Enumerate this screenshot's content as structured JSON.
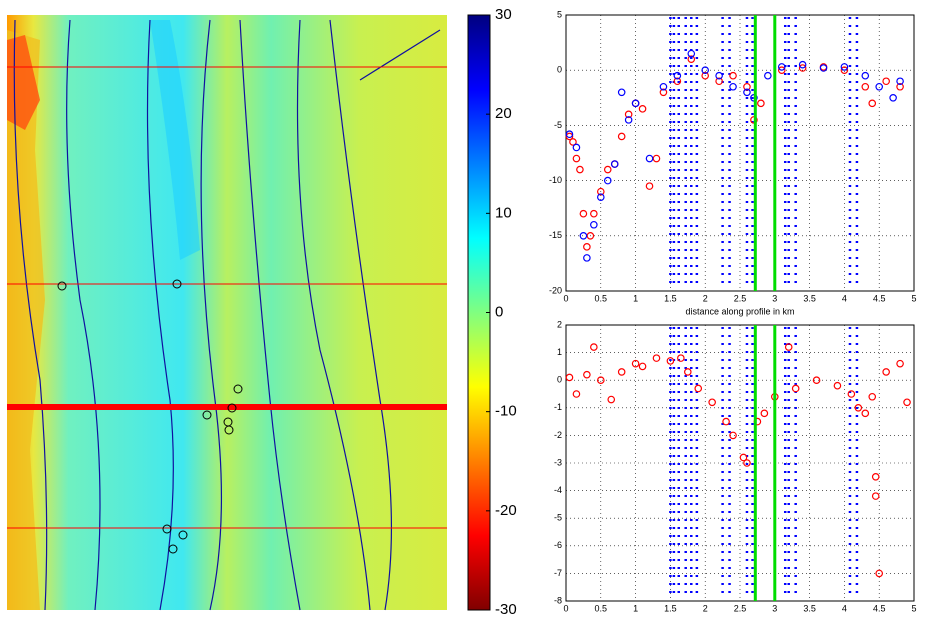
{
  "chart_data": [
    {
      "type": "heatmap",
      "clim": [
        -30,
        30
      ],
      "colorbar_ticks": [
        30,
        20,
        10,
        0,
        -10,
        -20,
        -30
      ]
    },
    {
      "type": "scatter",
      "xlim": [
        0,
        5
      ],
      "ylim": [
        -20,
        5
      ],
      "xticks": [
        0,
        0.5,
        1,
        1.5,
        2,
        2.5,
        3,
        3.5,
        4,
        4.5,
        5
      ],
      "yticks": [
        -20,
        -15,
        -10,
        -5,
        0,
        5
      ],
      "grid": true,
      "xlabel": "distance along profile in km",
      "vlines": {
        "color": "#00dd00",
        "x": [
          2.72,
          3.0
        ]
      },
      "marker_columns": {
        "color": "#0000ff",
        "x": [
          1.5,
          1.55,
          1.62,
          1.72,
          1.8,
          1.88,
          2.25,
          2.35,
          2.6,
          2.68,
          3.15,
          3.2,
          3.3,
          4.08,
          4.18
        ]
      },
      "series": [
        {
          "color": "#ff0000",
          "x": [
            0.05,
            0.1,
            0.15,
            0.2,
            0.25,
            0.3,
            0.35,
            0.4,
            0.5,
            0.6,
            0.7,
            0.8,
            0.9,
            1.0,
            1.1,
            1.2,
            1.3,
            1.4,
            1.6,
            1.8,
            2.0,
            2.2,
            2.4,
            2.6,
            2.7,
            2.8,
            3.1,
            3.4,
            3.7,
            4.0,
            4.3,
            4.4,
            4.6,
            4.8
          ],
          "values": [
            -6,
            -6.5,
            -8,
            -9,
            -13,
            -16,
            -15,
            -13,
            -11,
            -9,
            -8.5,
            -6,
            -4,
            -3,
            -3.5,
            -10.5,
            -8,
            -2,
            -1,
            1,
            -0.5,
            -1,
            -0.5,
            -1.5,
            -4.5,
            -3,
            0,
            0.2,
            0.3,
            0,
            -1.5,
            -3,
            -1,
            -1.5
          ]
        },
        {
          "color": "#0000ff",
          "x": [
            0.05,
            0.15,
            0.25,
            0.3,
            0.4,
            0.5,
            0.6,
            0.7,
            0.8,
            0.9,
            1.0,
            1.2,
            1.4,
            1.6,
            1.8,
            2.0,
            2.2,
            2.4,
            2.6,
            2.7,
            2.9,
            3.1,
            3.4,
            3.7,
            4.0,
            4.3,
            4.5,
            4.7,
            4.8
          ],
          "values": [
            -5.8,
            -7,
            -15,
            -17,
            -14,
            -11.5,
            -10,
            -8.5,
            -2,
            -4.5,
            -3,
            -8,
            -1.5,
            -0.5,
            1.5,
            0,
            -0.5,
            -1.5,
            -2,
            -2.5,
            -0.5,
            0.3,
            0.5,
            0.2,
            0.3,
            -0.5,
            -1.5,
            -2.5,
            -1
          ]
        }
      ]
    },
    {
      "type": "scatter",
      "xlim": [
        0,
        5
      ],
      "ylim": [
        -8,
        2
      ],
      "xticks": [
        0,
        0.5,
        1,
        1.5,
        2,
        2.5,
        3,
        3.5,
        4,
        4.5,
        5
      ],
      "yticks": [
        -8,
        -7,
        -6,
        -5,
        -4,
        -3,
        -2,
        -1,
        0,
        1,
        2
      ],
      "grid": true,
      "vlines": {
        "color": "#00dd00",
        "x": [
          2.72,
          3.0
        ]
      },
      "marker_columns": {
        "color": "#0000ff",
        "x": [
          1.5,
          1.55,
          1.62,
          1.72,
          1.8,
          1.88,
          2.25,
          2.35,
          2.6,
          2.68,
          3.15,
          3.2,
          3.3,
          4.08,
          4.18
        ]
      },
      "series": [
        {
          "color": "#ff0000",
          "x": [
            0.05,
            0.15,
            0.3,
            0.4,
            0.5,
            0.65,
            0.8,
            1.0,
            1.1,
            1.3,
            1.5,
            1.65,
            1.75,
            1.9,
            2.1,
            2.3,
            2.4,
            2.55,
            2.6,
            2.75,
            2.85,
            3.0,
            3.2,
            3.3,
            3.6,
            3.9,
            4.1,
            4.2,
            4.3,
            4.4,
            4.45,
            4.45,
            4.5,
            4.6,
            4.8,
            4.9
          ],
          "values": [
            0.1,
            -0.5,
            0.2,
            1.2,
            0,
            -0.7,
            0.3,
            0.6,
            0.5,
            0.8,
            0.7,
            0.8,
            0.3,
            -0.3,
            -0.8,
            -1.5,
            -2,
            -2.8,
            -3,
            -1.5,
            -1.2,
            -0.6,
            1.2,
            -0.3,
            0,
            -0.2,
            -0.5,
            -1,
            -1.2,
            -0.6,
            -3.5,
            -4.2,
            -7,
            0.3,
            0.6,
            -0.8
          ]
        }
      ]
    }
  ]
}
